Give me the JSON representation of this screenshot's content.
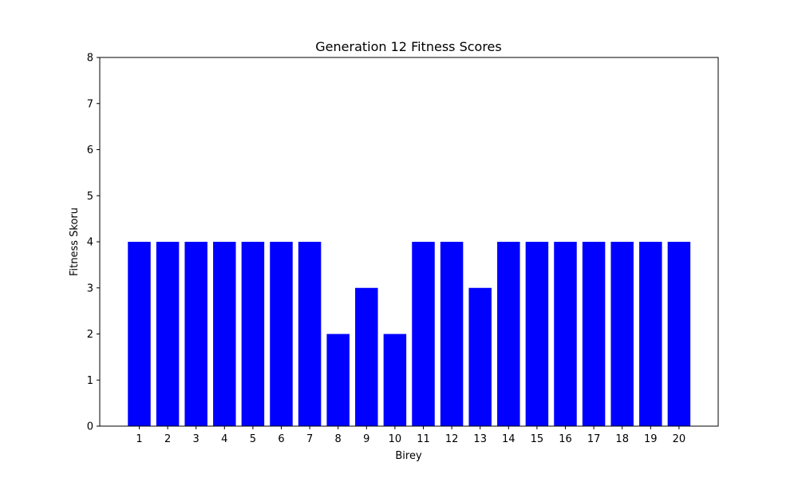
{
  "chart_data": {
    "type": "bar",
    "title": "Generation 12 Fitness Scores",
    "xlabel": "Birey",
    "ylabel": "Fitness Skoru",
    "categories": [
      "1",
      "2",
      "3",
      "4",
      "5",
      "6",
      "7",
      "8",
      "9",
      "10",
      "11",
      "12",
      "13",
      "14",
      "15",
      "16",
      "17",
      "18",
      "19",
      "20"
    ],
    "values": [
      4,
      4,
      4,
      4,
      4,
      4,
      4,
      2,
      3,
      2,
      4,
      4,
      3,
      4,
      4,
      4,
      4,
      4,
      4,
      4
    ],
    "ylim": [
      0,
      8
    ],
    "yticks": [
      "0",
      "1",
      "2",
      "3",
      "4",
      "5",
      "6",
      "7",
      "8"
    ],
    "grid": false,
    "legend": "none",
    "bar_color": "#0000ff"
  }
}
